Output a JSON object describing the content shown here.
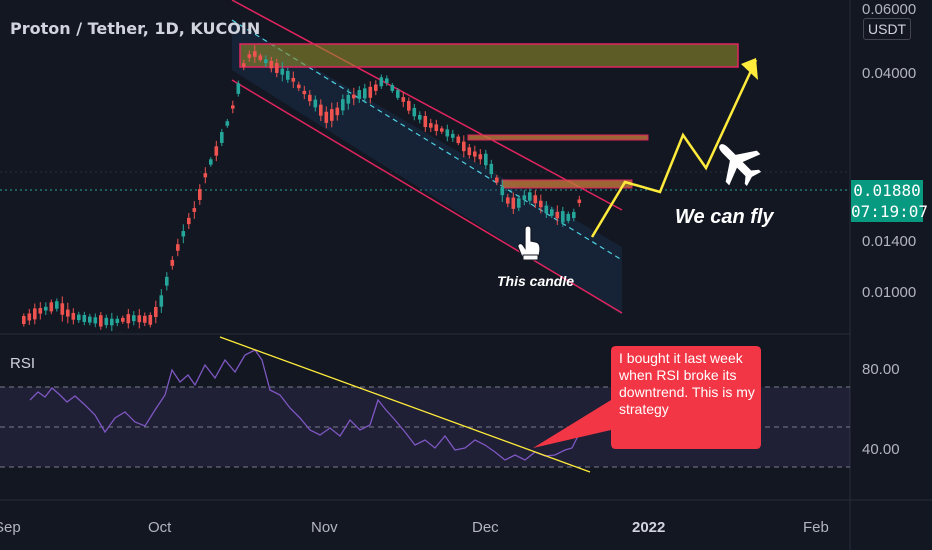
{
  "header": {
    "title": "Proton / Tether, 1D, KUCOIN"
  },
  "price_axis": {
    "currency": "USDT",
    "ticks": [
      "0.06000",
      "0.04000",
      "0.01400",
      "0.01000"
    ],
    "current_price": "0.01880",
    "countdown": "07:19:07"
  },
  "rsi_axis": {
    "ticks": [
      "80.00",
      "40.00"
    ]
  },
  "time_axis": {
    "ticks": [
      "Sep",
      "Oct",
      "Nov",
      "Dec",
      "2022",
      "Feb"
    ]
  },
  "rsi_pane": {
    "label": "RSI"
  },
  "annotations": {
    "fly_text": "We can fly",
    "candle_text": "This candle",
    "callout_text": "I bought it last week when RSI broke its downtrend. This is my strategy"
  },
  "colors": {
    "background": "#131722",
    "up": "#26a69a",
    "down": "#ef5350",
    "rsi_line": "#7e57c2",
    "channel": "#e0245e",
    "trendline": "#ffeb3b",
    "callout": "#f23645"
  },
  "icons": [
    "airplane-icon",
    "pointing-hand-icon"
  ]
}
